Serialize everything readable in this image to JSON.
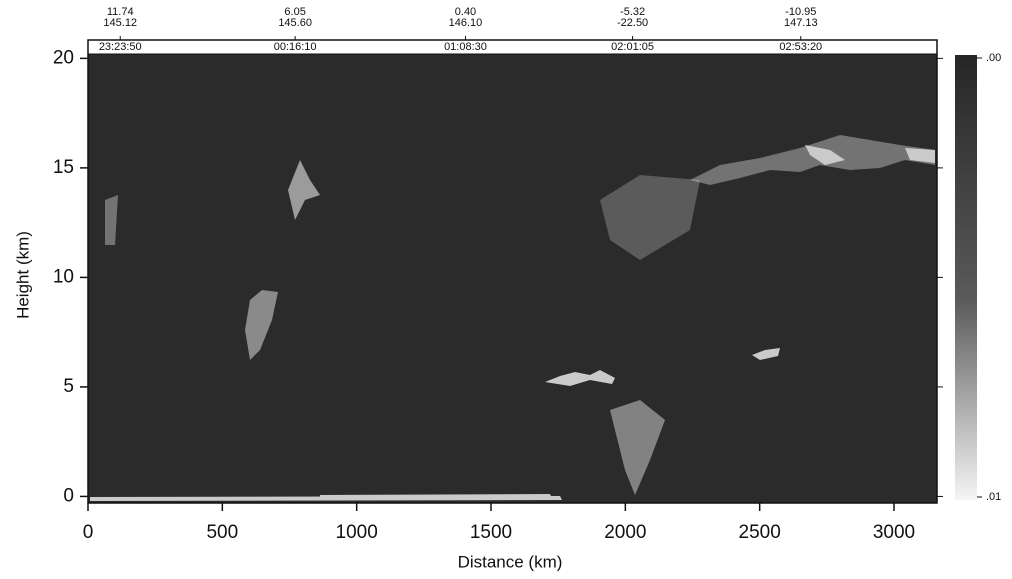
{
  "chart_data": {
    "type": "curtain",
    "x_label": "Distance (km)",
    "y_label": "Height (km)",
    "xlim": [
      0,
      3160
    ],
    "ylim": [
      -0.3,
      20.2
    ],
    "xticks": [
      0,
      500,
      1000,
      1500,
      2000,
      2500,
      3000
    ],
    "yticks": [
      0,
      5,
      10,
      15,
      20
    ],
    "background_color": "#2b2b2b",
    "track_labels": [
      {
        "x": 120,
        "latitude": "11.74",
        "longitude": "145.12",
        "time": "23:23:50"
      },
      {
        "x": 771,
        "latitude": "6.05",
        "longitude": "145.60",
        "time": "00:16:10"
      },
      {
        "x": 1405,
        "latitude": "0.40",
        "longitude": "146.10",
        "time": "01:08:30"
      },
      {
        "x": 2027,
        "latitude": "-5.32",
        "longitude": "-22.50",
        "time": "02:01:05"
      },
      {
        "x": 2653,
        "latitude": "-10.95",
        "longitude": "147.13",
        "time": "02:53:20"
      }
    ],
    "colorbar": {
      "lim": [
        0,
        0.01
      ],
      "colors": [
        "#262626",
        "#f5f5f5"
      ],
      "ticks": [
        {
          "value": 0,
          "label": ".00"
        },
        {
          "value": 0.01,
          "label": ".01"
        }
      ]
    }
  }
}
